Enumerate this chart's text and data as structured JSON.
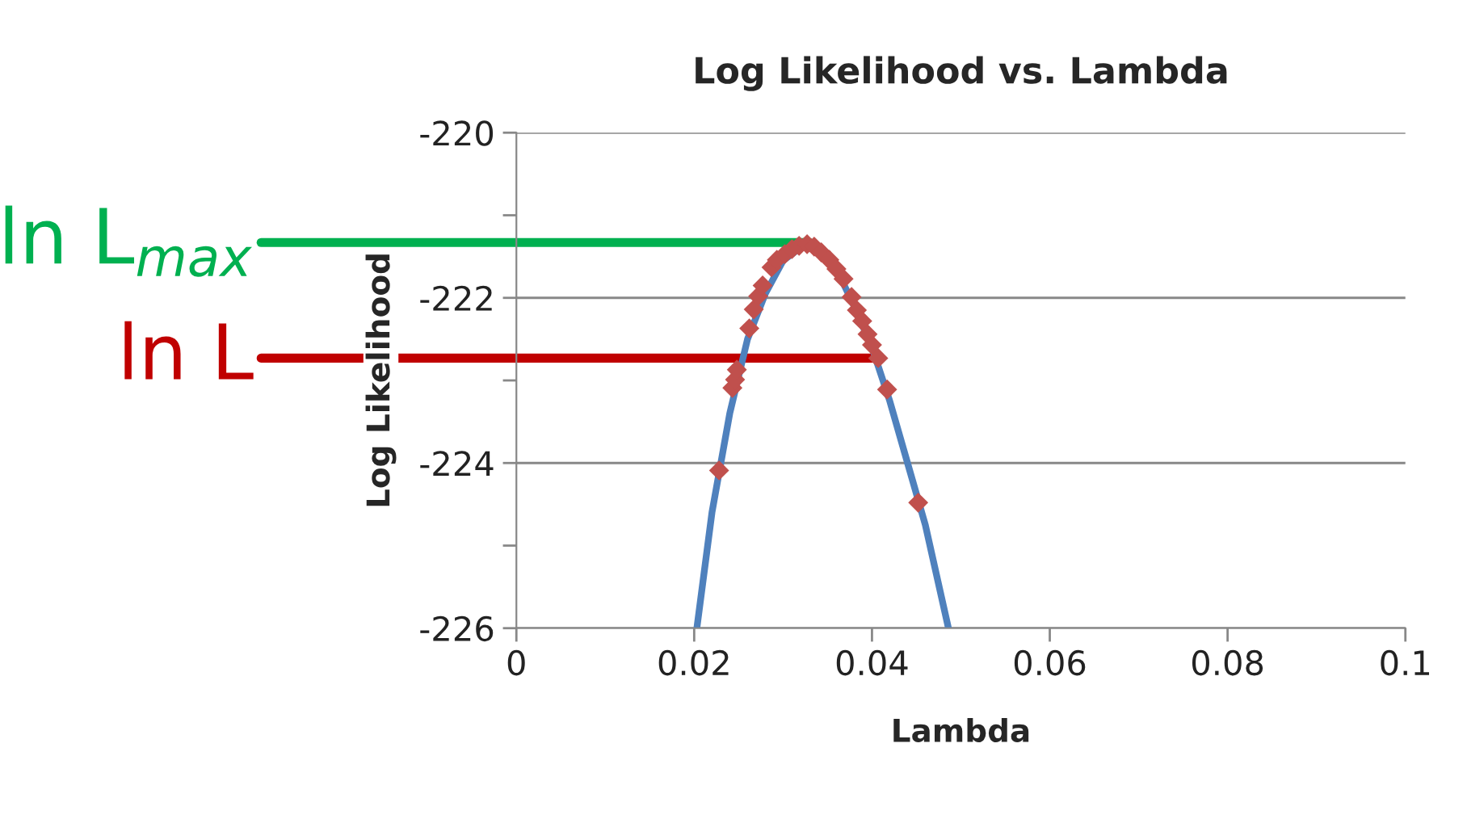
{
  "chart_data": {
    "type": "line",
    "title": "Log Likelihood vs. Lambda",
    "xlabel": "Lambda",
    "ylabel": "Log Likelihood",
    "series": [
      {
        "color": "#4f81bd",
        "x": [
          0.0203,
          0.022,
          0.024,
          0.026,
          0.028,
          0.03,
          0.032,
          0.033,
          0.034,
          0.036,
          0.038,
          0.04,
          0.042,
          0.044,
          0.046,
          0.0486
        ],
        "values": [
          -226,
          -224.6,
          -223.4,
          -222.5,
          -221.95,
          -221.55,
          -221.39,
          -221.36,
          -221.4,
          -221.65,
          -222.1,
          -222.6,
          -223.25,
          -224.0,
          -224.75,
          -226
        ]
      },
      {
        "type": "scatter",
        "color": "#c0504d",
        "marker": "diamond",
        "x": [
          0.0228,
          0.0243,
          0.0246,
          0.0248,
          0.0262,
          0.0267,
          0.0272,
          0.0277,
          0.0287,
          0.0293,
          0.0302,
          0.031,
          0.0318,
          0.0327,
          0.0335,
          0.0343,
          0.0352,
          0.036,
          0.0368,
          0.0377,
          0.0383,
          0.0389,
          0.0395,
          0.04,
          0.0407,
          0.0417,
          0.0452
        ],
        "values": [
          -224.09,
          -223.09,
          -222.99,
          -222.87,
          -222.37,
          -222.14,
          -221.98,
          -221.85,
          -221.63,
          -221.54,
          -221.47,
          -221.41,
          -221.37,
          -221.35,
          -221.38,
          -221.45,
          -221.54,
          -221.65,
          -221.77,
          -221.99,
          -222.15,
          -222.28,
          -222.44,
          -222.57,
          -222.73,
          -223.11,
          -224.48
        ]
      }
    ],
    "xlim": [
      0,
      0.1
    ],
    "xticks": [
      0,
      0.02,
      0.04,
      0.06,
      0.08,
      0.1
    ],
    "ylim": [
      -226,
      -220
    ],
    "yticks": [
      -226,
      {
        "value": -225,
        "label": null
      },
      -224,
      {
        "value": -223,
        "label": null
      },
      -222,
      {
        "value": -221,
        "label": null
      },
      -220
    ],
    "grid": "y",
    "ref_lines": [
      {
        "axis": "y",
        "value": -221.33,
        "label": "ln L$_{max}$",
        "color": "#00b050"
      },
      {
        "axis": "y",
        "value": -222.73,
        "label": "ln L",
        "color": "#c00000"
      }
    ]
  }
}
